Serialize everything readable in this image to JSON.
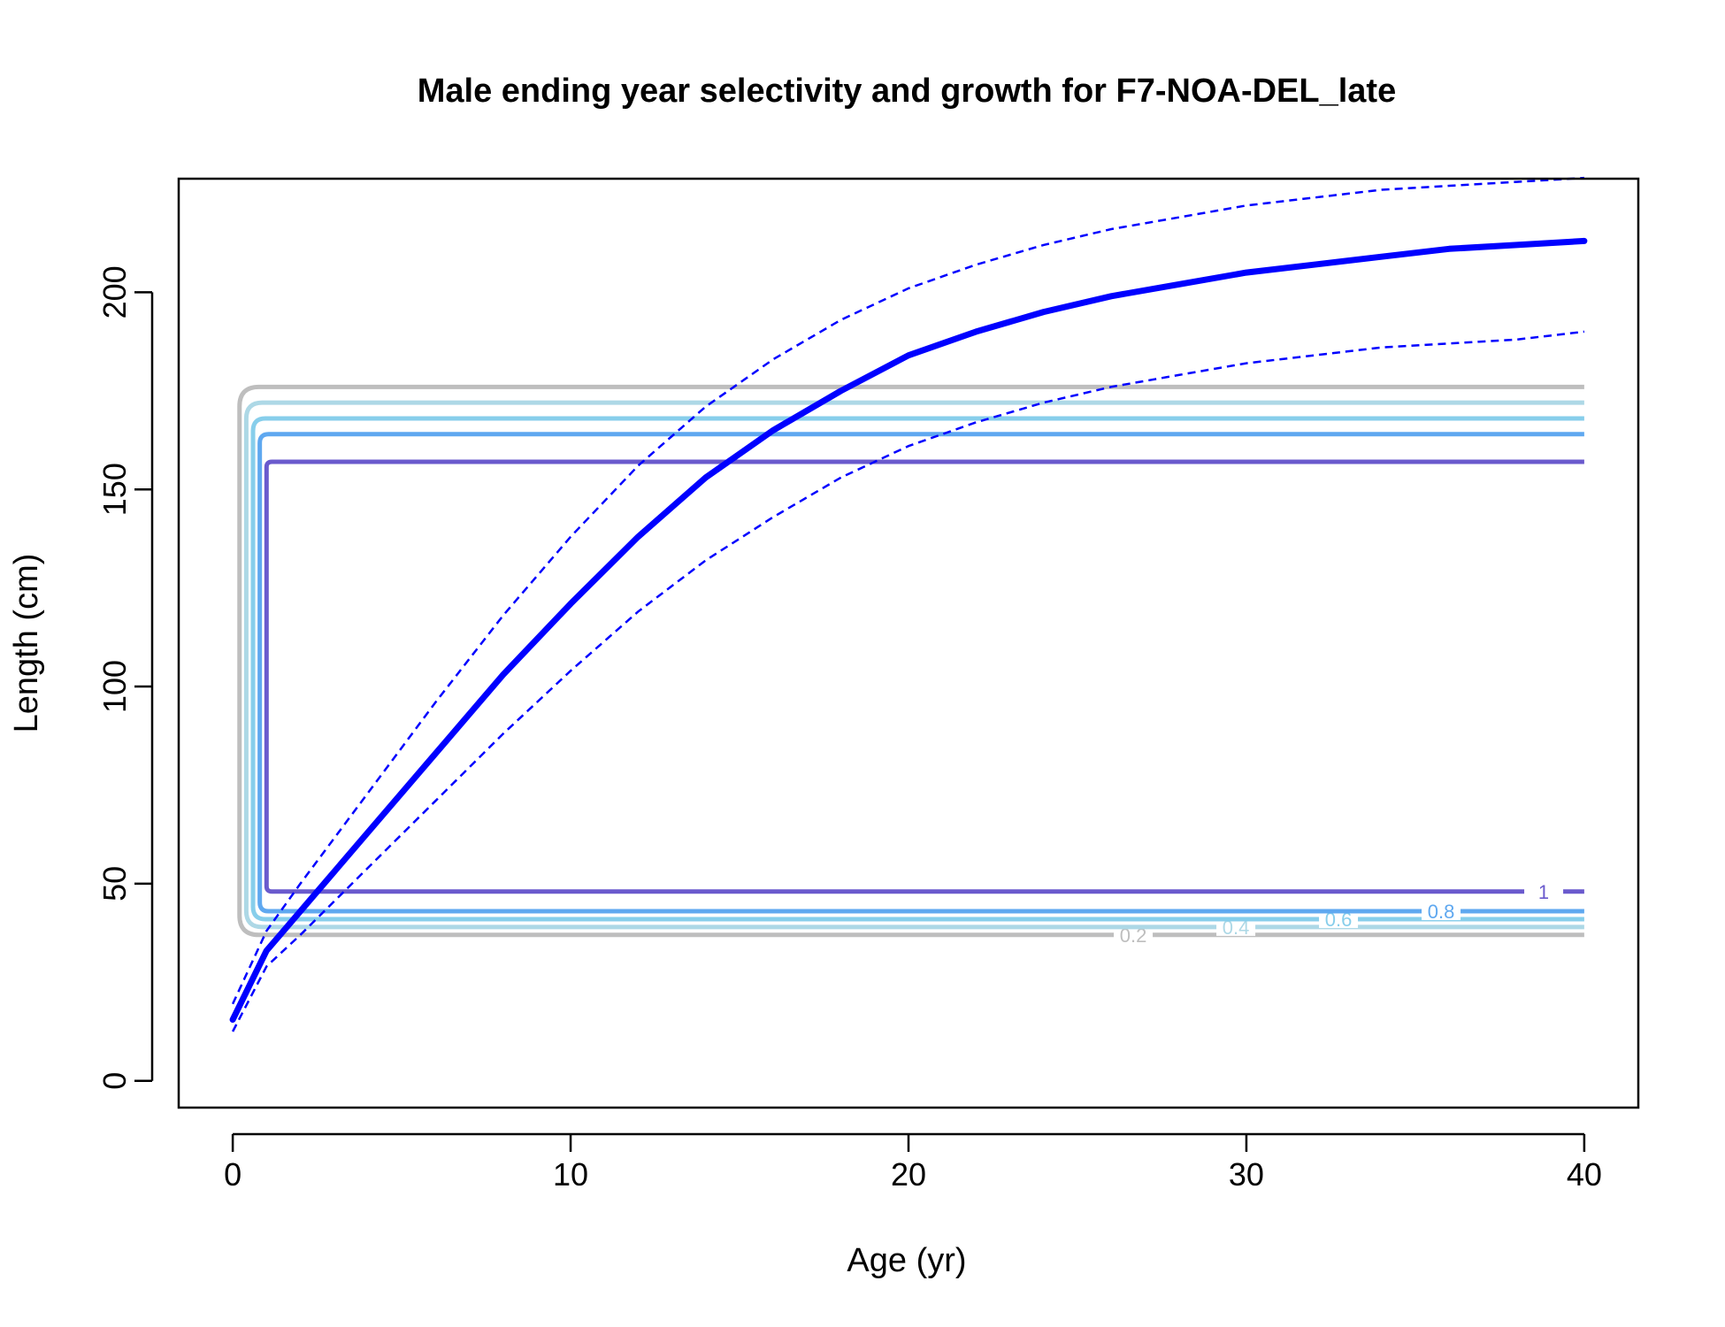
{
  "chart_data": {
    "type": "line",
    "title": "Male ending year selectivity and growth for F7-NOA-DEL_late",
    "xlabel": "Age (yr)",
    "ylabel": "Length (cm)",
    "xlim": [
      -1.6,
      41.6
    ],
    "ylim": [
      -6.8,
      228.8
    ],
    "xticks": [
      0,
      10,
      20,
      30,
      40
    ],
    "yticks": [
      0,
      50,
      100,
      150,
      200
    ],
    "grid": false,
    "legend": "none",
    "growth": {
      "color": "#0000ff",
      "ages": [
        0,
        1,
        2,
        4,
        6,
        8,
        10,
        12,
        14,
        16,
        18,
        20,
        22,
        24,
        26,
        28,
        30,
        32,
        34,
        36,
        38,
        40
      ],
      "mean": [
        15.5,
        33,
        43,
        63,
        83,
        103,
        121,
        138,
        153,
        165,
        175,
        184,
        190,
        195,
        199,
        202,
        205,
        207,
        209,
        211,
        212,
        213
      ],
      "upper": [
        19.5,
        38,
        50,
        73,
        96,
        118,
        138,
        156,
        171,
        183,
        193,
        201,
        207,
        212,
        216,
        219,
        222,
        224,
        226,
        227,
        228,
        229
      ],
      "lower": [
        12.5,
        29,
        37,
        54,
        71,
        88,
        104,
        119,
        132,
        143,
        153,
        161,
        167,
        172,
        176,
        179,
        182,
        184,
        186,
        187,
        188,
        190
      ]
    },
    "selectivity_contours": [
      {
        "level": "0.2",
        "color": "#bebebe",
        "age_min": 0.2,
        "age_max": 40,
        "len_min": 37,
        "len_max": 176
      },
      {
        "level": "0.4",
        "color": "#add8e6",
        "age_min": 0.4,
        "age_max": 40,
        "len_min": 39,
        "len_max": 172
      },
      {
        "level": "0.6",
        "color": "#87ceeb",
        "age_min": 0.6,
        "age_max": 40,
        "len_min": 41,
        "len_max": 168
      },
      {
        "level": "0.8",
        "color": "#5fa8f0",
        "age_min": 0.8,
        "age_max": 40,
        "len_min": 43,
        "len_max": 164
      },
      {
        "level": "1",
        "color": "#6a5acd",
        "age_min": 1.0,
        "age_max": 40,
        "len_min": 48,
        "len_max": 157
      }
    ]
  }
}
